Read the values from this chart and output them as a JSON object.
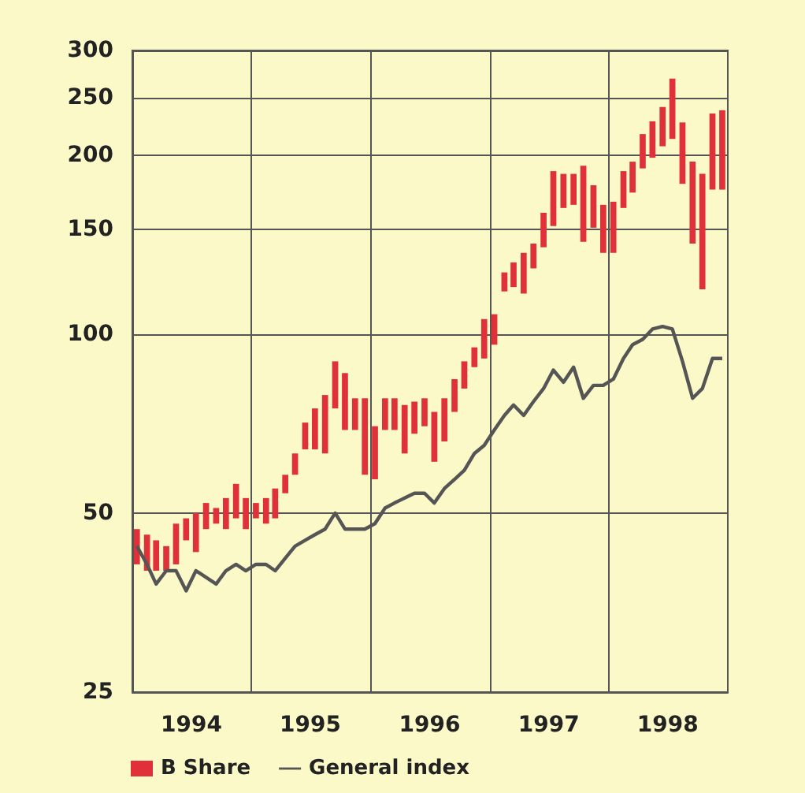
{
  "chart_data": {
    "type": "bar",
    "log": "y",
    "grid": true,
    "legend": "bottom left",
    "xlim": [
      "1994-01-01",
      "1999-01-01"
    ],
    "xticks": [
      {
        "value": "1994-07-01",
        "label": "1994"
      },
      {
        "value": "1995-01-01",
        "label": null
      },
      {
        "value": "1995-07-01",
        "label": "1995"
      },
      {
        "value": "1996-01-01",
        "label": null
      },
      {
        "value": "1996-07-01",
        "label": "1996"
      },
      {
        "value": "1997-01-01",
        "label": null
      },
      {
        "value": "1997-07-01",
        "label": "1997"
      },
      {
        "value": "1998-01-01",
        "label": null
      },
      {
        "value": "1998-07-01",
        "label": "1998"
      }
    ],
    "ylim": [
      25,
      300
    ],
    "yticks": [
      25,
      50,
      100,
      150,
      200,
      250,
      300
    ],
    "x": [
      "1994-01-15",
      "1994-02-15",
      "1994-03-15",
      "1994-04-15",
      "1994-05-15",
      "1994-06-15",
      "1994-07-15",
      "1994-08-15",
      "1994-09-15",
      "1994-10-15",
      "1994-11-15",
      "1994-12-15",
      "1995-01-15",
      "1995-02-15",
      "1995-03-15",
      "1995-04-15",
      "1995-05-15",
      "1995-06-15",
      "1995-07-15",
      "1995-08-15",
      "1995-09-15",
      "1995-10-15",
      "1995-11-15",
      "1995-12-15",
      "1996-01-15",
      "1996-02-15",
      "1996-03-15",
      "1996-04-15",
      "1996-05-15",
      "1996-06-15",
      "1996-07-15",
      "1996-08-15",
      "1996-09-15",
      "1996-10-15",
      "1996-11-15",
      "1996-12-15",
      "1997-01-15",
      "1997-02-15",
      "1997-03-15",
      "1997-04-15",
      "1997-05-15",
      "1997-06-15",
      "1997-07-15",
      "1997-08-15",
      "1997-09-15",
      "1997-10-15",
      "1997-11-15",
      "1997-12-15",
      "1998-01-15",
      "1998-02-15",
      "1998-03-15",
      "1998-04-15",
      "1998-05-15",
      "1998-06-15",
      "1998-07-15",
      "1998-08-15",
      "1998-09-15",
      "1998-10-15",
      "1998-11-15",
      "1998-12-15"
    ],
    "series": [
      {
        "name": "B Share",
        "color": "#e0313b",
        "base": [
          41,
          40,
          40,
          40,
          41,
          45,
          43,
          47,
          48,
          47,
          49,
          47,
          49,
          48,
          49,
          54,
          58,
          64,
          64,
          63,
          75,
          69,
          69,
          58,
          57,
          69,
          69,
          63,
          68,
          70,
          61,
          66,
          74,
          81,
          88,
          91,
          96,
          118,
          120,
          117,
          129,
          140,
          152,
          163,
          165,
          143,
          151,
          137,
          137,
          163,
          173,
          190,
          198,
          207,
          213,
          179,
          142,
          119,
          175,
          175
        ],
        "values": [
          6,
          6,
          5,
          4,
          7,
          4,
          7,
          5,
          3,
          6,
          7,
          6,
          3,
          5,
          6,
          4,
          5,
          7,
          11,
          16,
          15,
          17,
          9,
          20,
          13,
          9,
          9,
          13,
          9,
          8,
          13,
          12,
          10,
          9,
          7,
          15,
          12,
          9,
          12,
          20,
          13,
          20,
          36,
          23,
          21,
          49,
          27,
          28,
          30,
          25,
          22,
          27,
          30,
          34,
          56,
          48,
          53,
          67,
          60,
          63
        ]
      },
      {
        "name": "General index",
        "type": "line",
        "color": "#555555",
        "values": [
          44,
          41,
          38,
          40,
          40,
          37,
          40,
          39,
          38,
          40,
          41,
          40,
          41,
          41,
          40,
          42,
          44,
          45,
          46,
          47,
          50,
          47,
          47,
          47,
          48,
          51,
          52,
          53,
          54,
          54,
          52,
          55,
          57,
          59,
          63,
          65,
          69,
          73,
          76,
          73,
          77,
          81,
          87,
          83,
          88,
          78,
          82,
          82,
          84,
          91,
          96,
          98,
          102,
          103,
          102,
          90,
          78,
          81,
          91,
          91
        ]
      }
    ]
  }
}
